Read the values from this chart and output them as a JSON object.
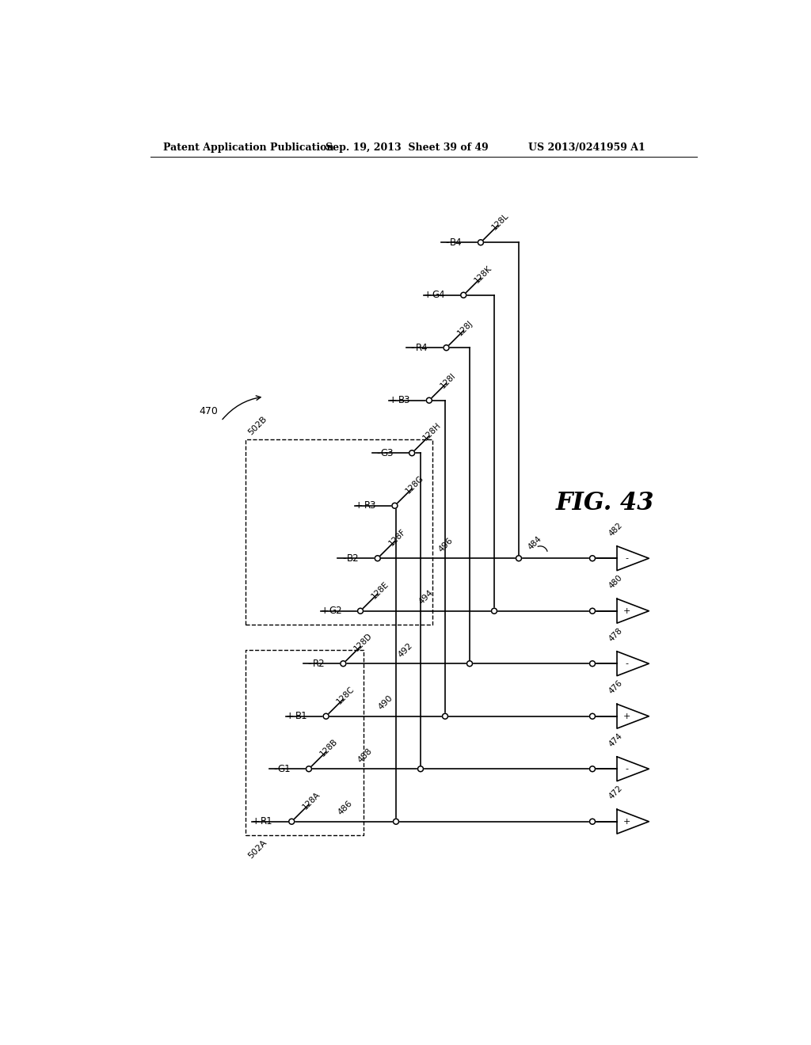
{
  "title_left": "Patent Application Publication",
  "title_mid": "Sep. 19, 2013  Sheet 39 of 49",
  "title_right": "US 2013/0241959 A1",
  "fig_label": "FIG. 43",
  "background_color": "#ffffff",
  "signals": [
    {
      "pm": "+",
      "sig": "R1",
      "wire": "128A",
      "row": 0
    },
    {
      "pm": "-",
      "sig": "G1",
      "wire": "128B",
      "row": 1
    },
    {
      "pm": "+",
      "sig": "B1",
      "wire": "128C",
      "row": 2
    },
    {
      "pm": "-",
      "sig": "R2",
      "wire": "128D",
      "row": 3
    },
    {
      "pm": "+",
      "sig": "G2",
      "wire": "128E",
      "row": 4
    },
    {
      "pm": "-",
      "sig": "B2",
      "wire": "128F",
      "row": 5
    },
    {
      "pm": "+",
      "sig": "R3",
      "wire": "128G",
      "row": 6
    },
    {
      "pm": "-",
      "sig": "G3",
      "wire": "128H",
      "row": 7
    },
    {
      "pm": "+",
      "sig": "B3",
      "wire": "128I",
      "row": 8
    },
    {
      "pm": "-",
      "sig": "R4",
      "wire": "128J",
      "row": 9
    },
    {
      "pm": "+",
      "sig": "G4",
      "wire": "128K",
      "row": 10
    },
    {
      "pm": "-",
      "sig": "B4",
      "wire": "128L",
      "row": 11
    }
  ],
  "amps": [
    {
      "pm": "+",
      "num": "472",
      "row": 0
    },
    {
      "pm": "-",
      "num": "474",
      "row": 1
    },
    {
      "pm": "+",
      "num": "476",
      "row": 2
    },
    {
      "pm": "-",
      "num": "478",
      "row": 3
    },
    {
      "pm": "+",
      "num": "480",
      "row": 4
    },
    {
      "pm": "-",
      "num": "482",
      "row": 5
    }
  ],
  "bus_nums": [
    "486",
    "488",
    "490",
    "492",
    "494",
    "496"
  ],
  "line_color": "#000000",
  "line_width": 1.2
}
